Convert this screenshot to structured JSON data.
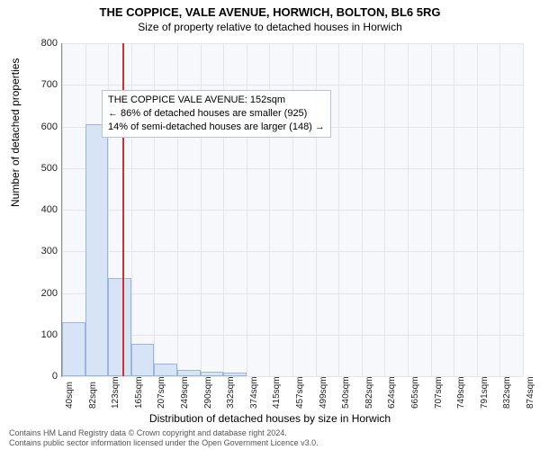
{
  "title": "THE COPPICE, VALE AVENUE, HORWICH, BOLTON, BL6 5RG",
  "subtitle": "Size of property relative to detached houses in Horwich",
  "y_axis_title": "Number of detached properties",
  "x_axis_title": "Distribution of detached houses by size in Horwich",
  "footer_line1": "Contains HM Land Registry data © Crown copyright and database right 2024.",
  "footer_line2": "Contains public sector information licensed under the Open Government Licence v3.0.",
  "info_box": {
    "line1": "THE COPPICE VALE AVENUE: 152sqm",
    "line2": "← 86% of detached houses are smaller (925)",
    "line3": "14% of semi-detached houses are larger (148) →"
  },
  "chart": {
    "type": "histogram",
    "background_color": "#f6f8fb",
    "grid_color": "#e2e6ec",
    "bar_fill": "#d6e4f5",
    "bar_border": "#9ab6d8",
    "reference_line_color": "#d03030",
    "reference_value_sqm": 152,
    "ylim": [
      0,
      800
    ],
    "ytick_step": 100,
    "y_ticks": [
      0,
      100,
      200,
      300,
      400,
      500,
      600,
      700,
      800
    ],
    "x_min": 40,
    "x_max": 895,
    "x_tick_labels": [
      "40sqm",
      "82sqm",
      "123sqm",
      "165sqm",
      "207sqm",
      "249sqm",
      "290sqm",
      "332sqm",
      "374sqm",
      "415sqm",
      "457sqm",
      "499sqm",
      "540sqm",
      "582sqm",
      "624sqm",
      "665sqm",
      "707sqm",
      "749sqm",
      "791sqm",
      "832sqm",
      "874sqm"
    ],
    "bars": [
      {
        "count": 130
      },
      {
        "count": 605
      },
      {
        "count": 235
      },
      {
        "count": 78
      },
      {
        "count": 30
      },
      {
        "count": 15
      },
      {
        "count": 10
      },
      {
        "count": 8
      },
      {
        "count": 0
      },
      {
        "count": 0
      },
      {
        "count": 0
      },
      {
        "count": 0
      },
      {
        "count": 0
      },
      {
        "count": 0
      },
      {
        "count": 0
      },
      {
        "count": 0
      },
      {
        "count": 0
      },
      {
        "count": 0
      },
      {
        "count": 0
      },
      {
        "count": 0
      }
    ],
    "title_fontsize": 13,
    "subtitle_fontsize": 12,
    "axis_label_fontsize": 12,
    "tick_fontsize": 11
  }
}
